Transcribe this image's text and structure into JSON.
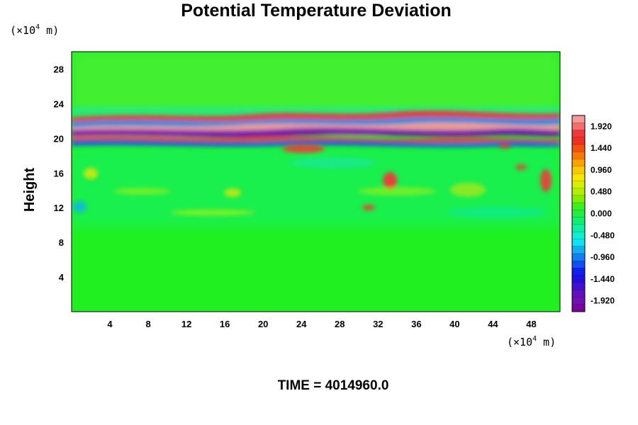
{
  "chart_data": {
    "type": "heatmap",
    "title": "Potential Temperature Deviation",
    "xlabel": "",
    "ylabel": "Height",
    "x_unit": {
      "prefix": "(×10",
      "sup": "4",
      "suffix": " m)"
    },
    "y_unit": {
      "prefix": "(×10",
      "sup": "4",
      "suffix": " m)"
    },
    "xlim": [
      0,
      51
    ],
    "ylim": [
      0,
      30
    ],
    "x_ticks": [
      4,
      8,
      12,
      16,
      20,
      24,
      28,
      32,
      36,
      40,
      44,
      48
    ],
    "y_ticks": [
      4,
      8,
      12,
      16,
      20,
      24,
      28
    ],
    "colorbar": {
      "range": [
        -2.16,
        2.16
      ],
      "tick_values": [
        1.92,
        1.44,
        0.96,
        0.48,
        0.0,
        -0.48,
        -0.96,
        -1.44,
        -1.92
      ],
      "tick_labels": [
        "1.920",
        "1.440",
        "0.960",
        "0.480",
        "0.000",
        "-0.480",
        "-0.960",
        "-1.440",
        "-1.920"
      ],
      "colors_top_to_bottom": [
        "#f59a9a",
        "#f07070",
        "#ee3a3a",
        "#f03020",
        "#f55010",
        "#f77808",
        "#faa000",
        "#fcc800",
        "#f5e600",
        "#d8f000",
        "#b0f000",
        "#80ee00",
        "#40ee20",
        "#20ee40",
        "#10ee70",
        "#10eea0",
        "#10eed0",
        "#10e0f0",
        "#10b0f0",
        "#1080f0",
        "#1050f0",
        "#1020f0",
        "#2010e0",
        "#4010d0",
        "#6010c0",
        "#7010b0",
        "#7a00a0"
      ]
    },
    "background_color": "#20f020",
    "time_label": "TIME = 4014960.0"
  }
}
